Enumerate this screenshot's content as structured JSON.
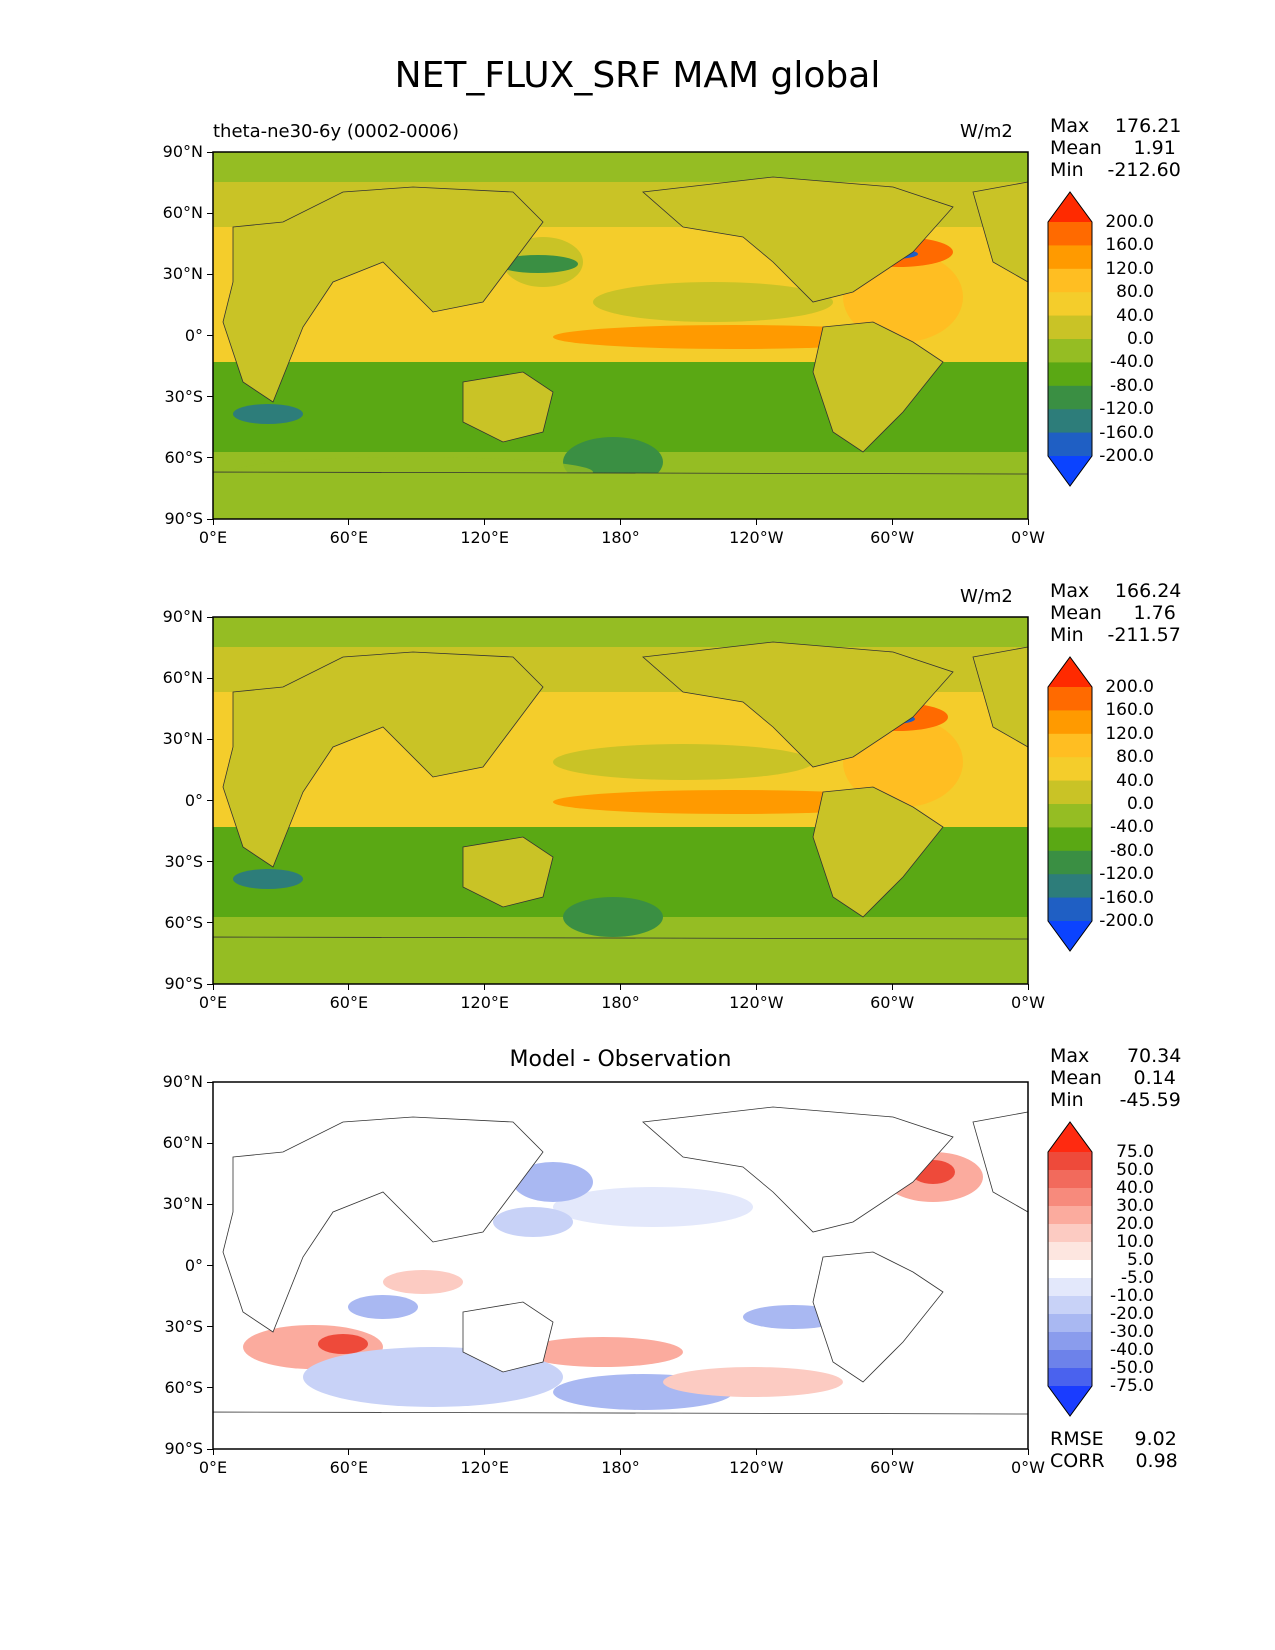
{
  "title": "NET_FLUX_SRF MAM global",
  "panels": [
    {
      "id": "test",
      "left_label": "theta-ne30-6y (0002-0006)",
      "center_label": "",
      "units": "W/m2",
      "stats": {
        "max_label": "Max",
        "max": "176.21",
        "mean_label": "Mean",
        "mean": "1.91",
        "min_label": "Min",
        "min": "-212.60"
      },
      "colorbar_levels": [
        "200.0",
        "160.0",
        "120.0",
        "80.0",
        "40.0",
        "0.0",
        "-40.0",
        "-80.0",
        "-120.0",
        "-160.0",
        "-200.0"
      ],
      "colorbar_colors": [
        "#ff2a00",
        "#ff6a00",
        "#ff9a00",
        "#ffbe22",
        "#f4cd2b",
        "#c9c326",
        "#95bd23",
        "#5aa814",
        "#3a8f43",
        "#2d7d7a",
        "#1f5fc4",
        "#0b43ff"
      ]
    },
    {
      "id": "reference",
      "left_label": "",
      "center_label": "",
      "units": "W/m2",
      "stats": {
        "max_label": "Max",
        "max": "166.24",
        "mean_label": "Mean",
        "mean": "1.76",
        "min_label": "Min",
        "min": "-211.57"
      },
      "colorbar_levels": [
        "200.0",
        "160.0",
        "120.0",
        "80.0",
        "40.0",
        "0.0",
        "-40.0",
        "-80.0",
        "-120.0",
        "-160.0",
        "-200.0"
      ],
      "colorbar_colors": [
        "#ff2a00",
        "#ff6a00",
        "#ff9a00",
        "#ffbe22",
        "#f4cd2b",
        "#c9c326",
        "#95bd23",
        "#5aa814",
        "#3a8f43",
        "#2d7d7a",
        "#1f5fc4",
        "#0b43ff"
      ]
    },
    {
      "id": "difference",
      "left_label": "",
      "center_label": "Model - Observation",
      "units": "",
      "stats": {
        "max_label": "Max",
        "max": "70.34",
        "mean_label": "Mean",
        "mean": "0.14",
        "min_label": "Min",
        "min": "-45.59"
      },
      "colorbar_levels": [
        "75.0",
        "50.0",
        "40.0",
        "30.0",
        "20.0",
        "10.0",
        "5.0",
        "-5.0",
        "-10.0",
        "-20.0",
        "-30.0",
        "-40.0",
        "-50.0",
        "-75.0"
      ],
      "colorbar_colors": [
        "#ff2a10",
        "#ee4a3a",
        "#f26a5c",
        "#f78a7c",
        "#fbab9e",
        "#fccbc2",
        "#fde6e0",
        "#ffffff",
        "#e3e8fb",
        "#c8d2f7",
        "#a9b8f2",
        "#8a9ced",
        "#6d82ea",
        "#4a62ee",
        "#1a3cff"
      ],
      "rmse_label": "RMSE",
      "rmse": "9.02",
      "corr_label": "CORR",
      "corr": "0.98"
    }
  ],
  "axes": {
    "lon_ticks": [
      "0°E",
      "60°E",
      "120°E",
      "180°",
      "120°W",
      "60°W",
      "0°W"
    ],
    "lat_ticks": [
      "90°N",
      "60°N",
      "30°N",
      "0°",
      "30°S",
      "60°S",
      "90°S"
    ]
  }
}
